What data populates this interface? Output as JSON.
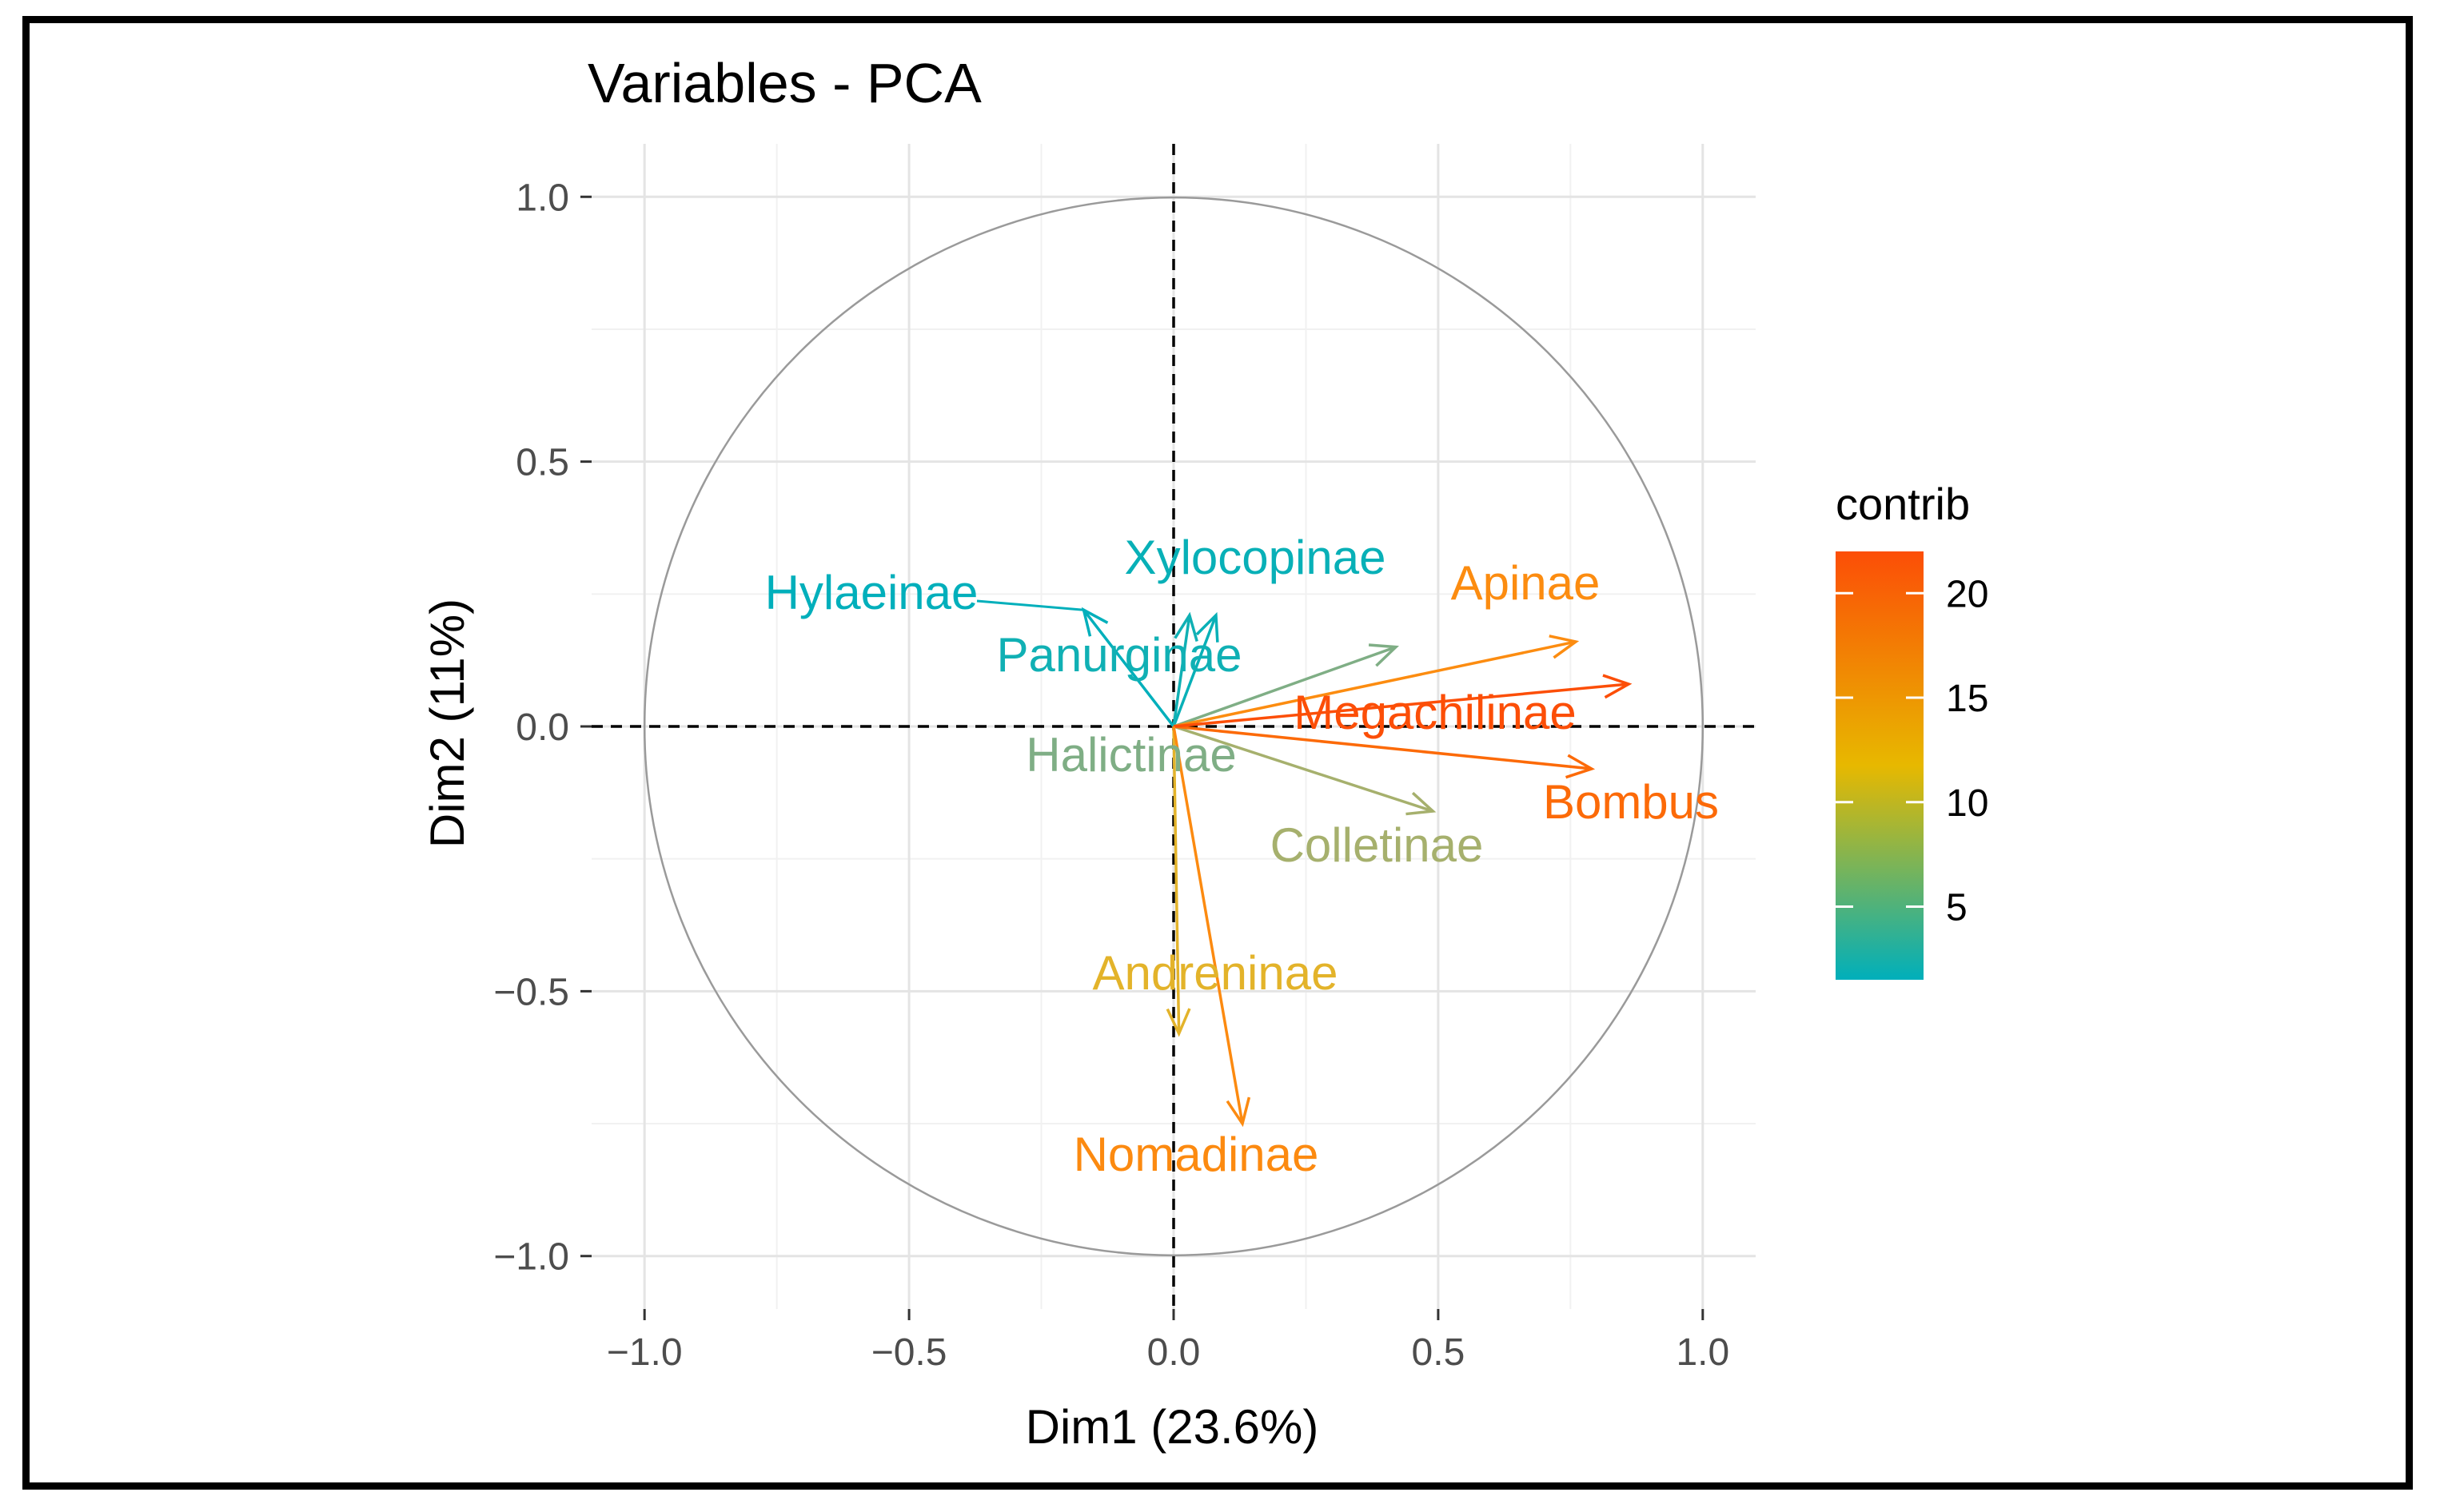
{
  "chart_data": {
    "type": "pca-variables",
    "title": "Variables - PCA",
    "xlabel": "Dim1 (23.6%)",
    "ylabel": "Dim2 (11%)",
    "xlim": [
      -1.1,
      1.1
    ],
    "ylim": [
      -1.1,
      1.1
    ],
    "x_ticks": [
      -1.0,
      -0.5,
      0.0,
      0.5,
      1.0
    ],
    "y_ticks": [
      -1.0,
      -0.5,
      0.0,
      0.5,
      1.0
    ],
    "x_tick_labels": [
      "−1.0",
      "−0.5",
      "0.0",
      "0.5",
      "1.0"
    ],
    "y_tick_labels": [
      "−1.0",
      "−0.5",
      "0.0",
      "0.5",
      "1.0"
    ],
    "grid": true,
    "correlation_circle": true,
    "variables": [
      {
        "name": "Hylaeinae",
        "x": -0.17,
        "y": 0.22,
        "contrib": 2,
        "color": "#00AFBB"
      },
      {
        "name": "Xylocopinae",
        "x": 0.08,
        "y": 0.21,
        "contrib": 2,
        "color": "#08B0B7"
      },
      {
        "name": "Panurginae",
        "x": 0.03,
        "y": 0.21,
        "contrib": 2,
        "color": "#10B0B4"
      },
      {
        "name": "Halictinae",
        "x": 0.42,
        "y": 0.15,
        "contrib": 6,
        "color": "#7FAE85"
      },
      {
        "name": "Colletinae",
        "x": 0.49,
        "y": -0.16,
        "contrib": 8,
        "color": "#A6B06D"
      },
      {
        "name": "Andreninae",
        "x": 0.01,
        "y": -0.58,
        "contrib": 11,
        "color": "#E3B32A"
      },
      {
        "name": "Apinae",
        "x": 0.76,
        "y": 0.16,
        "contrib": 17,
        "color": "#FC8C10"
      },
      {
        "name": "Bombus",
        "x": 0.79,
        "y": -0.08,
        "contrib": 19,
        "color": "#FC6A08"
      },
      {
        "name": "Megachilinae",
        "x": 0.86,
        "y": 0.08,
        "contrib": 21,
        "color": "#FC4E07"
      },
      {
        "name": "Nomadinae",
        "x": 0.13,
        "y": -0.75,
        "contrib": 17,
        "color": "#FC8A10"
      }
    ],
    "legend": {
      "title": "contrib",
      "position": "right",
      "min": 1.5,
      "max": 22,
      "ticks": [
        5,
        10,
        15,
        20
      ],
      "tick_labels": [
        "5",
        "10",
        "15",
        "20"
      ],
      "colors": [
        "#00AFBB",
        "#E7B800",
        "#FC4E07"
      ]
    }
  }
}
